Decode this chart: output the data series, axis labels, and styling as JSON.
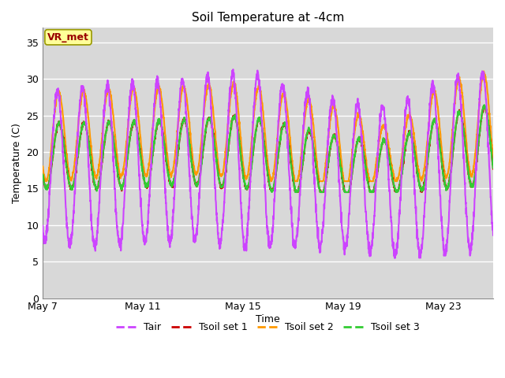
{
  "title": "Soil Temperature at -4cm",
  "xlabel": "Time",
  "ylabel": "Temperature (C)",
  "ylim": [
    0,
    37
  ],
  "yticks": [
    0,
    5,
    10,
    15,
    20,
    25,
    30,
    35
  ],
  "background_color": "#d8d8d8",
  "plot_bg_color": "#d8d8d8",
  "grid_color": "#ffffff",
  "line_colors": {
    "Tair": "#cc44ff",
    "Tsoil1": "#cc0000",
    "Tsoil2": "#ff9900",
    "Tsoil3": "#33cc33"
  },
  "line_widths": {
    "Tair": 1.5,
    "Tsoil1": 1.5,
    "Tsoil2": 1.5,
    "Tsoil3": 1.5
  },
  "legend_labels": [
    "Tair",
    "Tsoil set 1",
    "Tsoil set 2",
    "Tsoil set 3"
  ],
  "annotation_text": "VR_met",
  "annotation_color": "#990000",
  "annotation_bg": "#ffff99",
  "annotation_border": "#999900",
  "x_tick_labels": [
    "May 7",
    "May 11",
    "May 15",
    "May 19",
    "May 23"
  ],
  "x_tick_positions": [
    0,
    4,
    8,
    12,
    16
  ],
  "n_days": 18,
  "figsize": [
    6.4,
    4.8
  ],
  "dpi": 100
}
